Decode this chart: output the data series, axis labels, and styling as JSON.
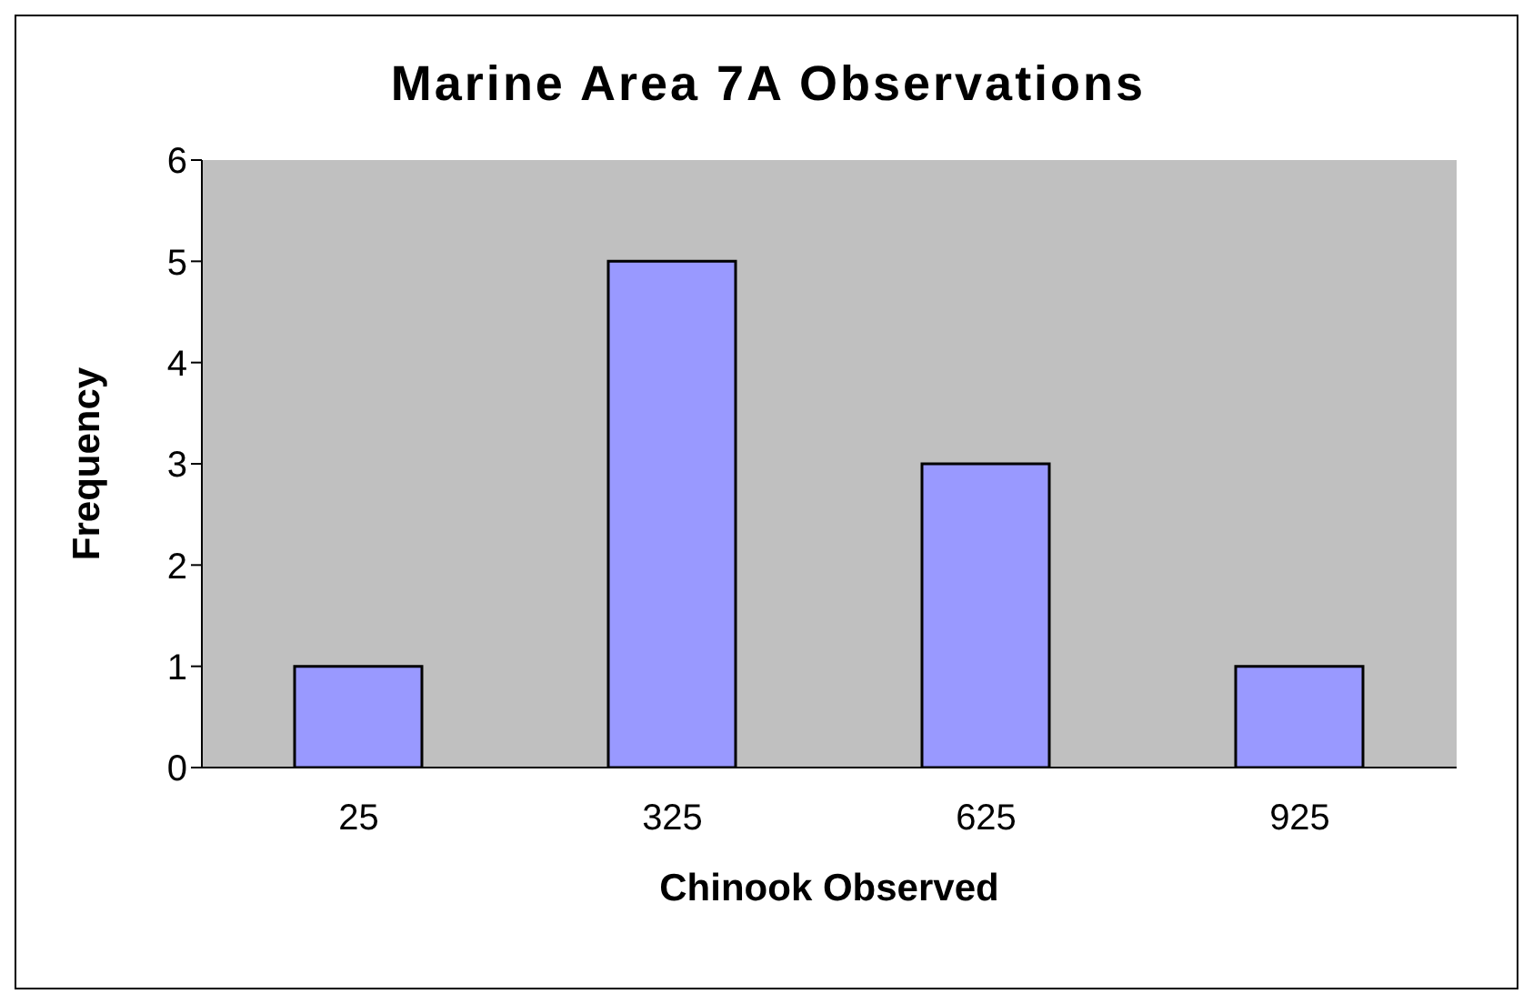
{
  "chart_data": {
    "type": "bar",
    "title": "Marine Area 7A Observations",
    "xlabel": "Chinook Observed",
    "ylabel": "Frequency",
    "categories": [
      "25",
      "325",
      "625",
      "925"
    ],
    "values": [
      1,
      5,
      3,
      1
    ],
    "color": "#9999ff",
    "ylim": [
      0,
      6
    ],
    "yticks": [
      0,
      1,
      2,
      3,
      4,
      5,
      6
    ],
    "grid": false,
    "legend": false
  }
}
